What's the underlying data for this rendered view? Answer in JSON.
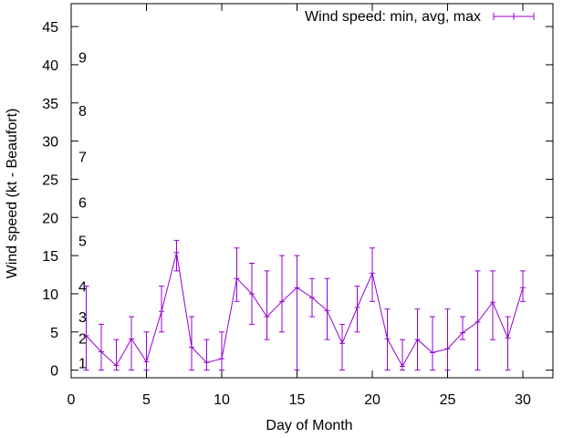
{
  "chart_data": {
    "type": "line",
    "title": "",
    "xlabel": "Day of Month",
    "ylabel": "Wind speed (kt - Beaufort)",
    "xlim": [
      0,
      32
    ],
    "ylim": [
      -1,
      48
    ],
    "xticks": [
      0,
      5,
      10,
      15,
      20,
      25,
      30
    ],
    "yticks": [
      0,
      5,
      10,
      15,
      20,
      25,
      30,
      35,
      40,
      45
    ],
    "legend": {
      "label": "Wind speed: min, avg, max",
      "placement": "top-right"
    },
    "series_color": "#9400d3",
    "beaufort_labels": [
      {
        "label": "1",
        "y": 1
      },
      {
        "label": "2",
        "y": 4.2
      },
      {
        "label": "3",
        "y": 7
      },
      {
        "label": "4",
        "y": 11
      },
      {
        "label": "5",
        "y": 17
      },
      {
        "label": "6",
        "y": 22
      },
      {
        "label": "7",
        "y": 28
      },
      {
        "label": "8",
        "y": 34
      },
      {
        "label": "9",
        "y": 41
      }
    ],
    "series": [
      {
        "name": "Wind speed: min, avg, max",
        "x": [
          1,
          2,
          3,
          4,
          5,
          6,
          7,
          8,
          9,
          10,
          11,
          12,
          13,
          14,
          15,
          16,
          17,
          18,
          19,
          20,
          21,
          22,
          23,
          24,
          25,
          26,
          27,
          28,
          29,
          30
        ],
        "avg": [
          4.5,
          2.4,
          0.6,
          4.1,
          1.1,
          7.7,
          15.4,
          3.0,
          1.0,
          1.5,
          12.0,
          10.0,
          7.0,
          9.0,
          10.8,
          9.5,
          7.8,
          3.5,
          8.2,
          12.7,
          4.1,
          0.5,
          4.0,
          2.3,
          2.8,
          4.9,
          6.3,
          8.9,
          4.2,
          10.8
        ],
        "min": [
          0,
          0,
          0,
          0,
          0,
          5,
          13,
          0,
          0,
          0,
          9,
          6,
          4,
          5,
          0,
          7,
          4,
          0,
          5,
          9,
          0,
          0,
          0,
          0,
          0,
          4,
          0,
          4,
          0,
          9
        ],
        "max": [
          11,
          6,
          4,
          7,
          5,
          11,
          17,
          7,
          4,
          5,
          16,
          14,
          13,
          15,
          15,
          12,
          12,
          6,
          11,
          16,
          8,
          4,
          8,
          7,
          8,
          7,
          13,
          13,
          7,
          13
        ]
      }
    ]
  }
}
